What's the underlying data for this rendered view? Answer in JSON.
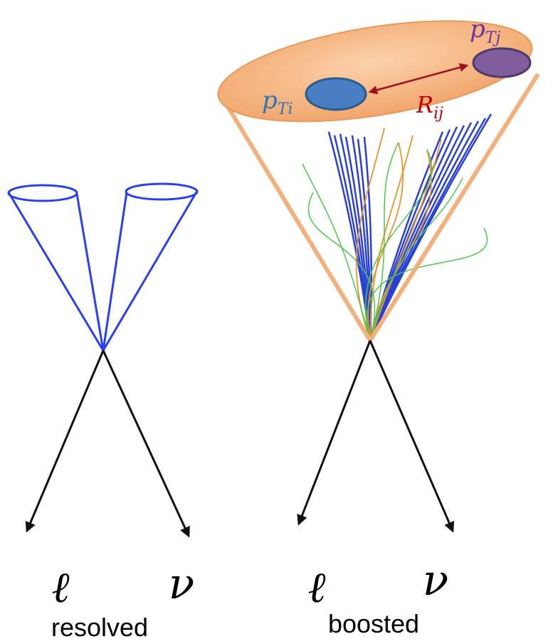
{
  "diagram": {
    "momenta": [
      {
        "symbol": "p",
        "subscript": "Ti"
      },
      {
        "symbol": "p",
        "subscript": "Tj"
      }
    ],
    "distance": {
      "symbol": "R",
      "subscript": "ij"
    },
    "panels": [
      {
        "decay": [
          "ℓ",
          "ν"
        ],
        "label": "resolved"
      },
      {
        "decay": [
          "ℓ",
          "ν"
        ],
        "label": "boosted"
      }
    ]
  }
}
